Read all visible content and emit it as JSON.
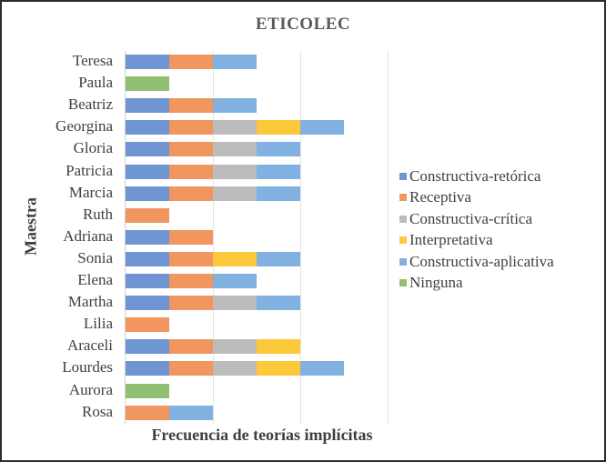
{
  "chart_data": {
    "type": "bar",
    "orientation": "horizontal",
    "stacked": true,
    "title": "ETICOLEC",
    "xlabel": "Frecuencia de teorías implícitas",
    "ylabel": "Maestra",
    "xlim": [
      0,
      6
    ],
    "x_gridlines": [
      2,
      4,
      6
    ],
    "x_tick_labels_visible": false,
    "grid": true,
    "legend_position": "right",
    "categories": [
      "Teresa",
      "Paula",
      "Beatriz",
      "Georgina",
      "Gloria",
      "Patricia",
      "Marcia",
      "Ruth",
      "Adriana",
      "Sonia",
      "Elena",
      "Martha",
      "Lilia",
      "Araceli",
      "Lourdes",
      "Aurora",
      "Rosa"
    ],
    "series": [
      {
        "name": "Constructiva-retórica",
        "color": "#6f95d2",
        "values": [
          1,
          0,
          1,
          1,
          1,
          1,
          1,
          0,
          1,
          1,
          1,
          1,
          0,
          1,
          1,
          0,
          0
        ]
      },
      {
        "name": "Receptiva",
        "color": "#f0965e",
        "values": [
          1,
          0,
          1,
          1,
          1,
          1,
          1,
          1,
          1,
          1,
          1,
          1,
          1,
          1,
          1,
          0,
          1
        ]
      },
      {
        "name": "Constructiva-crítica",
        "color": "#bcbcbc",
        "values": [
          0,
          0,
          0,
          1,
          1,
          1,
          1,
          0,
          0,
          0,
          0,
          1,
          0,
          1,
          1,
          0,
          0
        ]
      },
      {
        "name": "Interpretativa",
        "color": "#fcc93b",
        "values": [
          0,
          0,
          0,
          1,
          0,
          0,
          0,
          0,
          0,
          1,
          0,
          0,
          0,
          1,
          1,
          0,
          0
        ]
      },
      {
        "name": "Constructiva-aplicativa",
        "color": "#80b1e0",
        "values": [
          1,
          0,
          1,
          1,
          1,
          1,
          1,
          0,
          0,
          1,
          1,
          1,
          0,
          0,
          1,
          0,
          1
        ]
      },
      {
        "name": "Ninguna",
        "color": "#92c072",
        "values": [
          0,
          1,
          0,
          0,
          0,
          0,
          0,
          0,
          0,
          0,
          0,
          0,
          0,
          0,
          0,
          1,
          0
        ]
      }
    ]
  }
}
